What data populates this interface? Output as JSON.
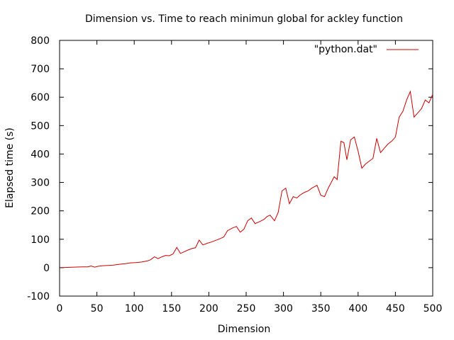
{
  "chart_data": {
    "type": "line",
    "title": "Dimension vs. Time to reach minimun global for ackley function",
    "xlabel": "Dimension",
    "ylabel": "Elapsed time (s)",
    "xlim": [
      0,
      500
    ],
    "ylim": [
      -100,
      800
    ],
    "xticks": [
      0,
      50,
      100,
      150,
      200,
      250,
      300,
      350,
      400,
      450,
      500
    ],
    "yticks": [
      -100,
      0,
      100,
      200,
      300,
      400,
      500,
      600,
      700,
      800
    ],
    "grid": false,
    "legend_position": "top-right",
    "series": [
      {
        "name": "\"python.dat\"",
        "color": "#cc0000",
        "x": [
          1,
          10,
          20,
          30,
          38,
          42,
          47,
          52,
          58,
          65,
          72,
          80,
          88,
          95,
          102,
          110,
          118,
          122,
          127,
          132,
          137,
          142,
          147,
          152,
          157,
          162,
          167,
          172,
          178,
          182,
          187,
          192,
          198,
          203,
          208,
          213,
          220,
          225,
          232,
          237,
          242,
          247,
          252,
          257,
          262,
          268,
          274,
          278,
          282,
          288,
          293,
          298,
          303,
          308,
          313,
          318,
          322,
          328,
          333,
          338,
          345,
          350,
          355,
          360,
          364,
          368,
          372,
          377,
          381,
          385,
          390,
          395,
          400,
          405,
          410,
          415,
          420,
          425,
          430,
          435,
          440,
          445,
          450,
          455,
          460,
          465,
          470,
          475,
          480,
          485,
          490,
          495,
          500
        ],
        "y": [
          0,
          1,
          2,
          3,
          3,
          6,
          2,
          5,
          7,
          8,
          9,
          12,
          14,
          17,
          18,
          20,
          24,
          28,
          38,
          32,
          38,
          43,
          42,
          48,
          71,
          50,
          56,
          62,
          68,
          70,
          97,
          80,
          86,
          90,
          95,
          100,
          108,
          130,
          140,
          145,
          125,
          135,
          165,
          175,
          155,
          162,
          170,
          180,
          185,
          165,
          195,
          270,
          280,
          225,
          250,
          245,
          255,
          265,
          270,
          280,
          290,
          255,
          250,
          280,
          300,
          320,
          310,
          445,
          440,
          380,
          450,
          460,
          410,
          350,
          365,
          375,
          385,
          455,
          405,
          420,
          435,
          445,
          460,
          530,
          550,
          590,
          620,
          530,
          545,
          560,
          590,
          580,
          610
        ]
      }
    ]
  }
}
